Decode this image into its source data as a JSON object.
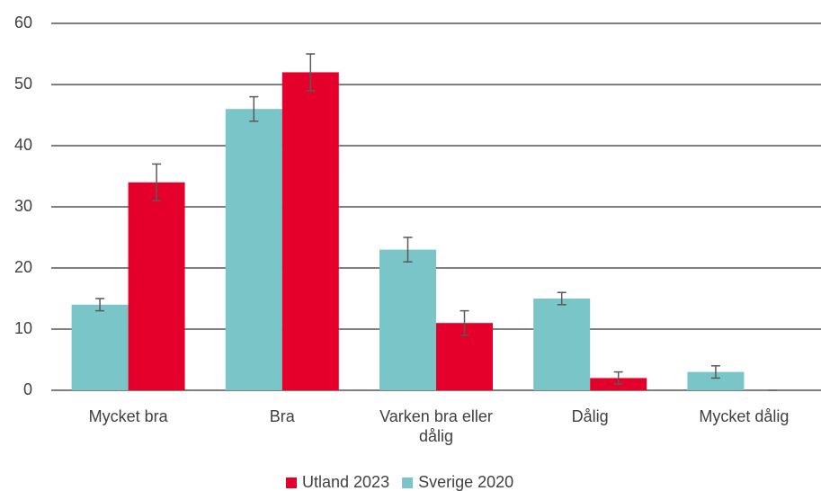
{
  "chart_data": {
    "type": "bar",
    "categories": [
      "Mycket bra",
      "Bra",
      "Varken bra eller dålig",
      "Dålig",
      "Mycket dålig"
    ],
    "series": [
      {
        "name": "Sverige 2020",
        "color": "#7ac5c8",
        "values": [
          14,
          46,
          23,
          15,
          3
        ],
        "errors": [
          1,
          2,
          2,
          1,
          1
        ]
      },
      {
        "name": "Utland 2023",
        "color": "#e4002b",
        "values": [
          34,
          52,
          11,
          2,
          0
        ],
        "errors": [
          3,
          3,
          2,
          1,
          0
        ]
      }
    ],
    "ylim": [
      0,
      60
    ],
    "yticks": [
      0,
      10,
      20,
      30,
      40,
      50,
      60
    ],
    "grid": true,
    "legend": "bottom"
  }
}
